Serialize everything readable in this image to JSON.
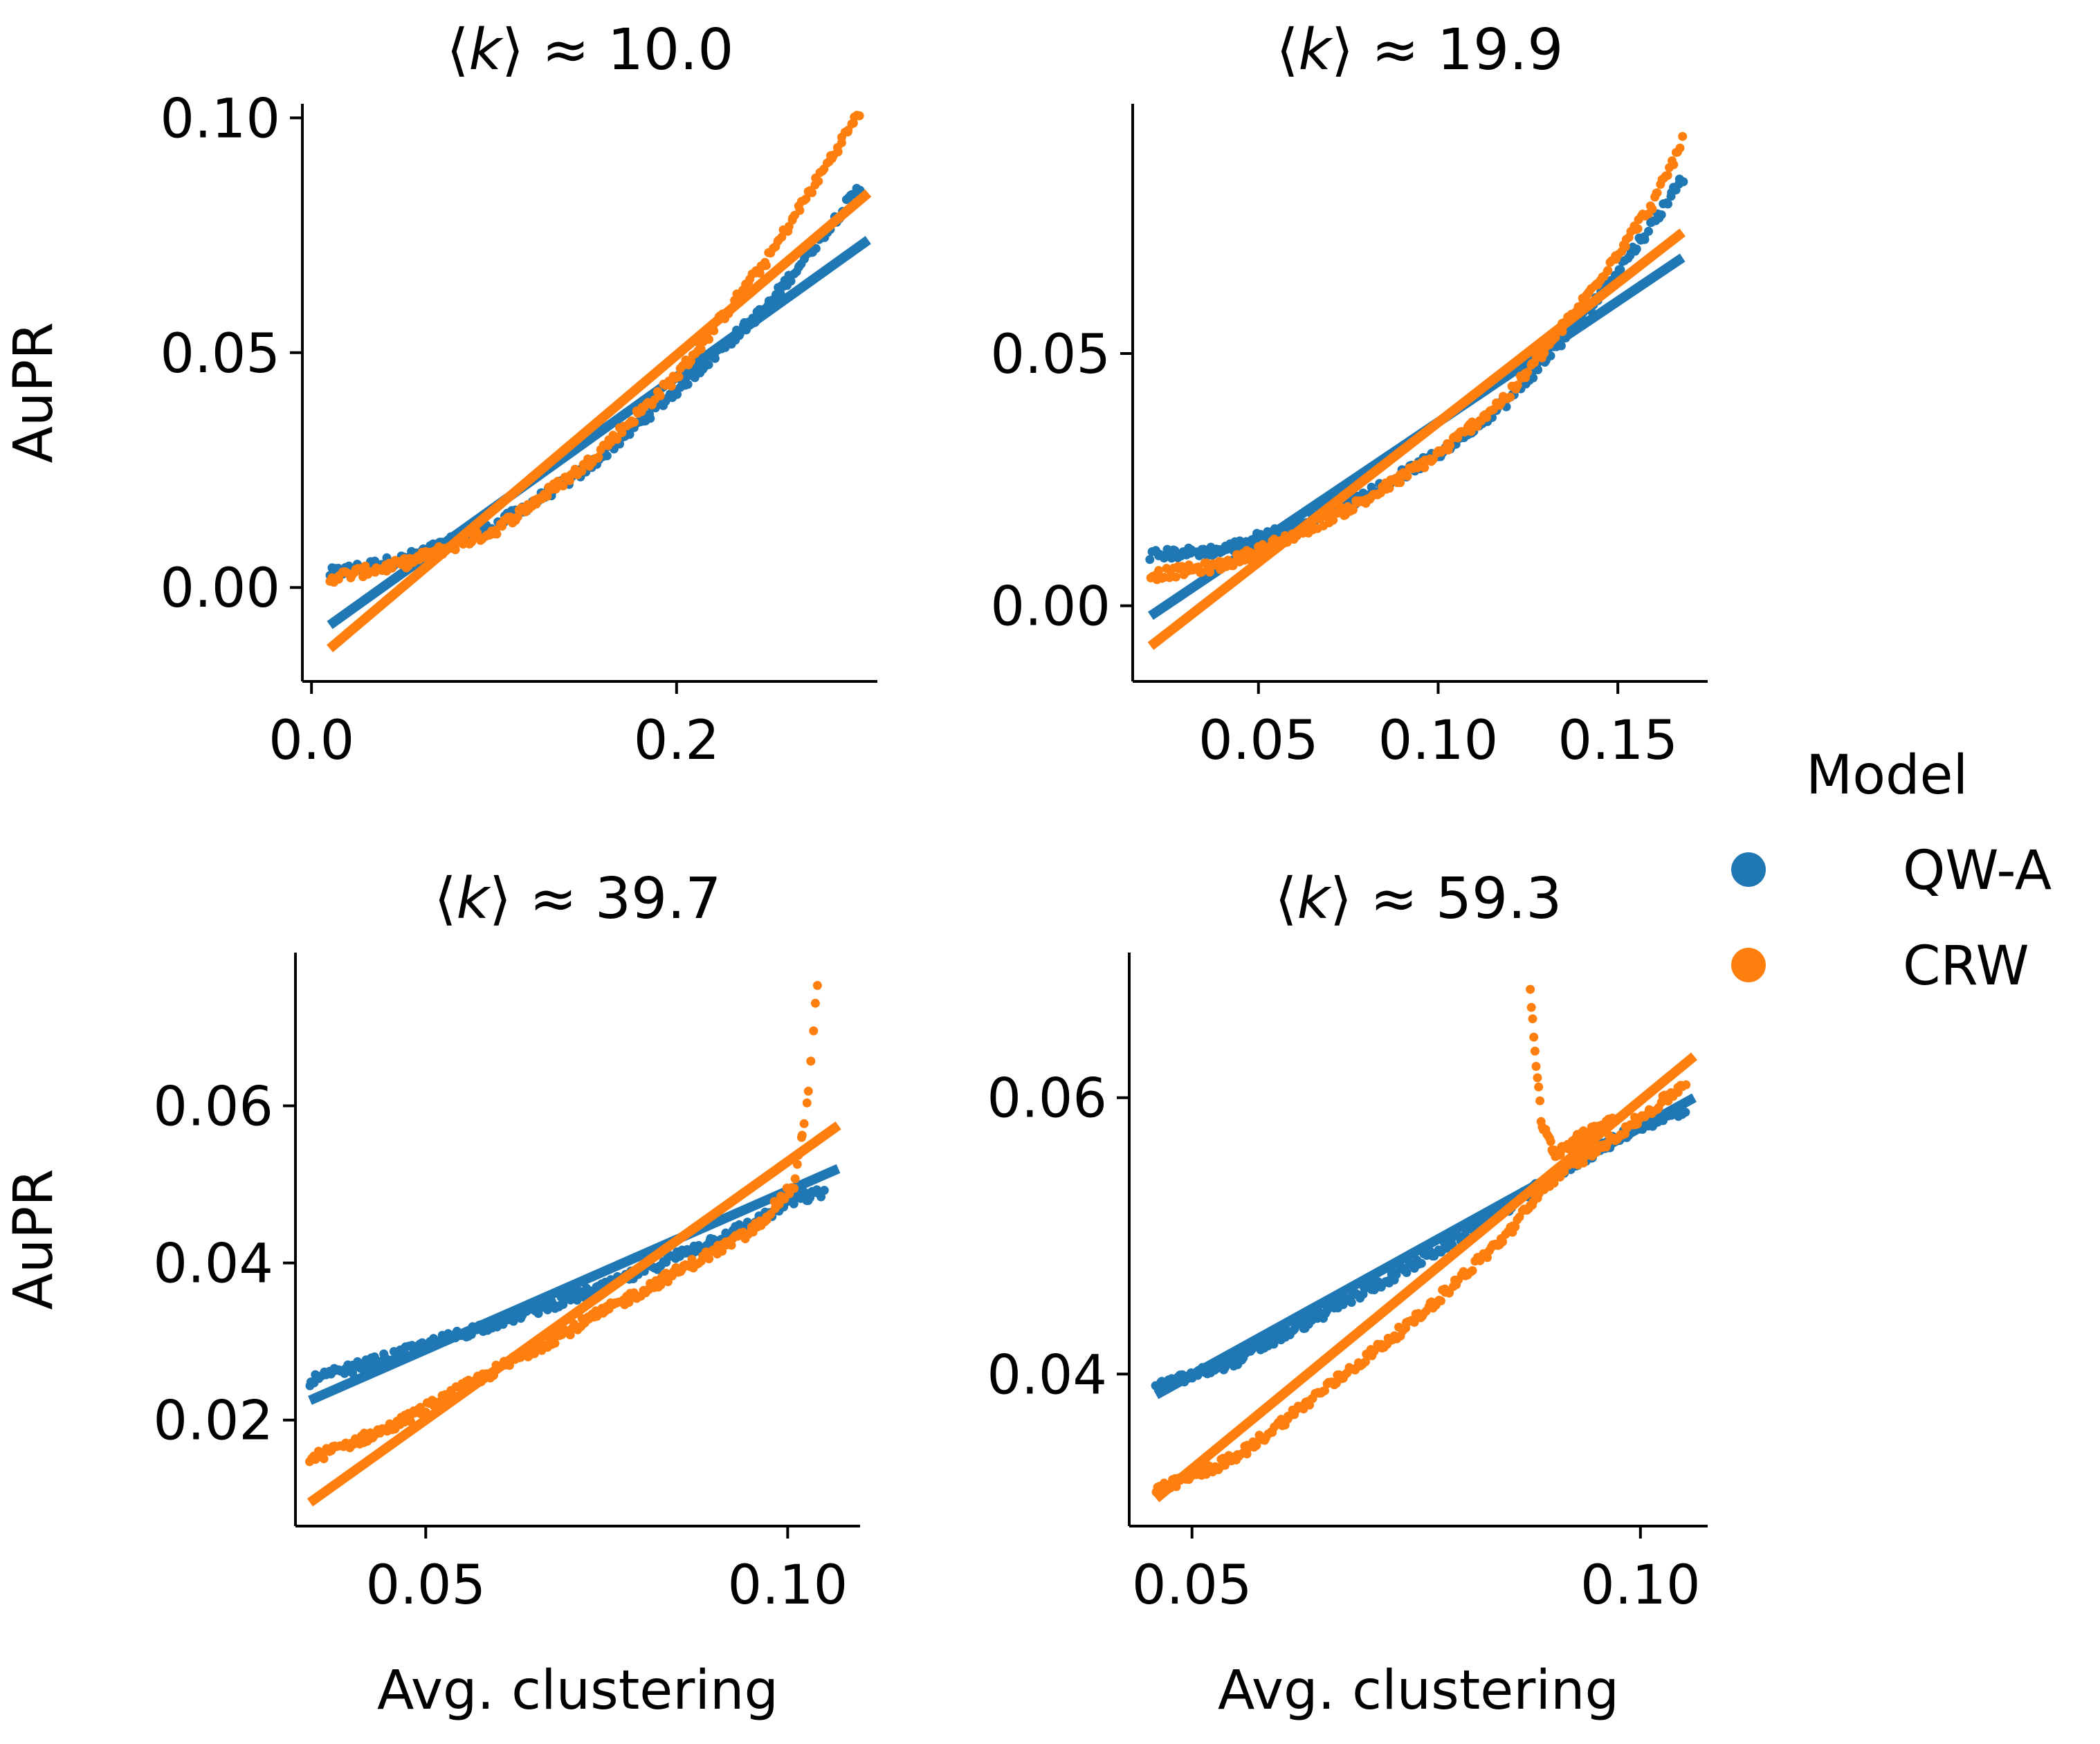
{
  "figure": {
    "legend": {
      "title": "Model",
      "placement": "center-right",
      "entries": [
        {
          "label": "QW-A",
          "color": "#1f77b4"
        },
        {
          "label": "CRW",
          "color": "#ff7f0e"
        }
      ]
    }
  },
  "chart_data": [
    {
      "type": "scatter",
      "title": "⟨k⟩ ≈ 10.0",
      "title_parts": {
        "open": "⟨",
        "var": "k",
        "rest": "⟩ ≈ 10.0"
      },
      "xlabel": "",
      "ylabel": "AuPR",
      "xlim": [
        -0.005,
        0.31
      ],
      "ylim": [
        -0.02,
        0.103
      ],
      "xticks": [
        0.0,
        0.2
      ],
      "xtick_labels": [
        "0.0",
        "0.2"
      ],
      "yticks": [
        0.0,
        0.05,
        0.1
      ],
      "ytick_labels": [
        "0.00",
        "0.05",
        "0.10"
      ],
      "series": [
        {
          "name": "QW-A",
          "color": "#1f77b4",
          "curve": [
            [
              0.01,
              0.003
            ],
            [
              0.05,
              0.006
            ],
            [
              0.1,
              0.013
            ],
            [
              0.15,
              0.025
            ],
            [
              0.2,
              0.042
            ],
            [
              0.25,
              0.06
            ],
            [
              0.3,
              0.085
            ]
          ],
          "fit": [
            [
              0.01,
              -0.008
            ],
            [
              0.305,
              0.074
            ]
          ]
        },
        {
          "name": "CRW",
          "color": "#ff7f0e",
          "curve": [
            [
              0.01,
              0.002
            ],
            [
              0.05,
              0.005
            ],
            [
              0.1,
              0.012
            ],
            [
              0.15,
              0.026
            ],
            [
              0.2,
              0.045
            ],
            [
              0.25,
              0.07
            ],
            [
              0.3,
              0.101
            ]
          ],
          "fit": [
            [
              0.01,
              -0.013
            ],
            [
              0.305,
              0.084
            ]
          ]
        }
      ]
    },
    {
      "type": "scatter",
      "title": "⟨k⟩ ≈ 19.9",
      "title_parts": {
        "open": "⟨",
        "var": "k",
        "rest": "⟩ ≈ 19.9"
      },
      "xlabel": "",
      "ylabel": "",
      "xlim": [
        0.015,
        0.175
      ],
      "ylim": [
        -0.015,
        0.0995
      ],
      "xticks": [
        0.05,
        0.1,
        0.15
      ],
      "xtick_labels": [
        "0.05",
        "0.10",
        "0.15"
      ],
      "yticks": [
        0.0,
        0.05
      ],
      "ytick_labels": [
        "0.00",
        "0.05"
      ],
      "series": [
        {
          "name": "QW-A",
          "color": "#1f77b4",
          "curve": [
            [
              0.02,
              0.01
            ],
            [
              0.04,
              0.011
            ],
            [
              0.06,
              0.016
            ],
            [
              0.08,
              0.022
            ],
            [
              0.1,
              0.03
            ],
            [
              0.12,
              0.041
            ],
            [
              0.14,
              0.057
            ],
            [
              0.16,
              0.076
            ],
            [
              0.168,
              0.085
            ]
          ],
          "fit": [
            [
              0.02,
              -0.002
            ],
            [
              0.168,
              0.069
            ]
          ]
        },
        {
          "name": "CRW",
          "color": "#ff7f0e",
          "curve": [
            [
              0.02,
              0.006
            ],
            [
              0.04,
              0.008
            ],
            [
              0.06,
              0.014
            ],
            [
              0.08,
              0.021
            ],
            [
              0.1,
              0.03
            ],
            [
              0.12,
              0.042
            ],
            [
              0.14,
              0.06
            ],
            [
              0.16,
              0.08
            ],
            [
              0.168,
              0.092
            ]
          ],
          "fit": [
            [
              0.02,
              -0.008
            ],
            [
              0.168,
              0.074
            ]
          ]
        }
      ]
    },
    {
      "type": "scatter",
      "title": "⟨k⟩ ≈ 39.7",
      "title_parts": {
        "open": "⟨",
        "var": "k",
        "rest": "⟩ ≈ 39.7"
      },
      "xlabel": "Avg. clustering",
      "ylabel": "AuPR",
      "xlim": [
        0.032,
        0.11
      ],
      "ylim": [
        0.0065,
        0.0795
      ],
      "xticks": [
        0.05,
        0.1
      ],
      "xtick_labels": [
        "0.05",
        "0.10"
      ],
      "yticks": [
        0.02,
        0.04,
        0.06
      ],
      "ytick_labels": [
        "0.02",
        "0.04",
        "0.06"
      ],
      "series": [
        {
          "name": "QW-A",
          "color": "#1f77b4",
          "curve": [
            [
              0.034,
              0.025
            ],
            [
              0.045,
              0.028
            ],
            [
              0.055,
              0.031
            ],
            [
              0.065,
              0.034
            ],
            [
              0.075,
              0.037
            ],
            [
              0.085,
              0.041
            ],
            [
              0.095,
              0.045
            ],
            [
              0.101,
              0.048
            ],
            [
              0.105,
              0.049
            ]
          ],
          "fit": [
            [
              0.034,
              0.0225
            ],
            [
              0.107,
              0.052
            ]
          ]
        },
        {
          "name": "CRW",
          "color": "#ff7f0e",
          "curve": [
            [
              0.034,
              0.015
            ],
            [
              0.045,
              0.019
            ],
            [
              0.055,
              0.024
            ],
            [
              0.065,
              0.029
            ],
            [
              0.075,
              0.034
            ],
            [
              0.085,
              0.039
            ],
            [
              0.095,
              0.044
            ],
            [
              0.101,
              0.05
            ],
            [
              0.103,
              0.063
            ],
            [
              0.104,
              0.075
            ]
          ],
          "fit": [
            [
              0.034,
              0.0095
            ],
            [
              0.107,
              0.0575
            ]
          ]
        }
      ]
    },
    {
      "type": "scatter",
      "title": "⟨k⟩ ≈ 59.3",
      "title_parts": {
        "open": "⟨",
        "var": "k",
        "rest": "⟩ ≈ 59.3"
      },
      "xlabel": "Avg. clustering",
      "ylabel": "",
      "xlim": [
        0.043,
        0.1075
      ],
      "ylim": [
        0.029,
        0.0705
      ],
      "xticks": [
        0.05,
        0.1
      ],
      "xtick_labels": [
        "0.05",
        "0.10"
      ],
      "yticks": [
        0.04,
        0.06
      ],
      "ytick_labels": [
        "0.04",
        "0.06"
      ],
      "series": [
        {
          "name": "QW-A",
          "color": "#1f77b4",
          "curve": [
            [
              0.046,
              0.039
            ],
            [
              0.055,
              0.041
            ],
            [
              0.065,
              0.0445
            ],
            [
              0.075,
              0.048
            ],
            [
              0.085,
              0.052
            ],
            [
              0.092,
              0.055
            ],
            [
              0.1,
              0.058
            ],
            [
              0.105,
              0.059
            ]
          ],
          "fit": [
            [
              0.046,
              0.0385
            ],
            [
              0.106,
              0.06
            ]
          ]
        },
        {
          "name": "CRW",
          "color": "#ff7f0e",
          "curve": [
            [
              0.046,
              0.0315
            ],
            [
              0.055,
              0.034
            ],
            [
              0.065,
              0.039
            ],
            [
              0.075,
              0.044
            ],
            [
              0.085,
              0.05
            ],
            [
              0.09,
              0.054
            ],
            [
              0.1,
              0.0585
            ],
            [
              0.105,
              0.061
            ]
          ],
          "fit": [
            [
              0.046,
              0.031
            ],
            [
              0.106,
              0.063
            ]
          ]
        },
        {
          "name": "CRW-spike",
          "color": "#ff7f0e",
          "hidden_in_legend": true,
          "curve": [
            [
              0.0877,
              0.068
            ],
            [
              0.0883,
              0.063
            ],
            [
              0.089,
              0.058
            ],
            [
              0.0905,
              0.056
            ],
            [
              0.093,
              0.057
            ],
            [
              0.097,
              0.0585
            ]
          ]
        }
      ]
    }
  ]
}
